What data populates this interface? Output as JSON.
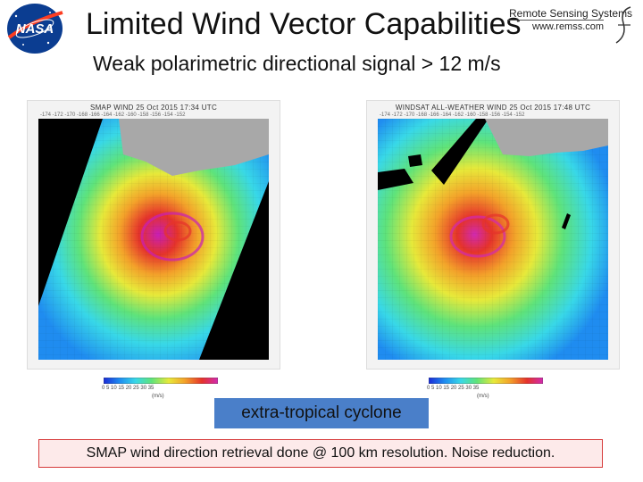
{
  "slide": {
    "title": "Limited Wind Vector Capabilities",
    "subtitle": "Weak polarimetric directional signal > 12 m/s"
  },
  "logos": {
    "nasa_text": "NASA",
    "rss_name": "Remote Sensing Systems",
    "rss_url": "www.remss.com"
  },
  "panels": {
    "left": {
      "header": "SMAP WIND    25 Oct 2015    17:34 UTC",
      "ticks": "-174 -172 -170 -168 -166 -164 -162 -160 -158 -156 -154 -152"
    },
    "right": {
      "header": "WINDSAT ALL-WEATHER WIND    25 Oct 2015    17:48 UTC",
      "ticks": "-174 -172 -170 -168 -166 -164 -162 -160 -158 -156 -154 -152"
    }
  },
  "colorbar": {
    "ticks": "0   5   10   15   20   25   30   35",
    "units": "(m/s)",
    "colors": [
      "#1a2bd6",
      "#1f8cf0",
      "#38d8e8",
      "#5fe37a",
      "#e7e93a",
      "#f3a22a",
      "#e5332b",
      "#d12ab0"
    ]
  },
  "annotation_label": "extra-tropical cyclone",
  "footer": "SMAP wind direction retrieval done @ 100 km resolution.  Noise reduction.",
  "colors": {
    "label_box": "#4a7fc9",
    "footer_border": "#d63a3a",
    "footer_fill": "#fdeaea",
    "nasa_blue": "#0b3d91",
    "nasa_red": "#fc3d21"
  }
}
